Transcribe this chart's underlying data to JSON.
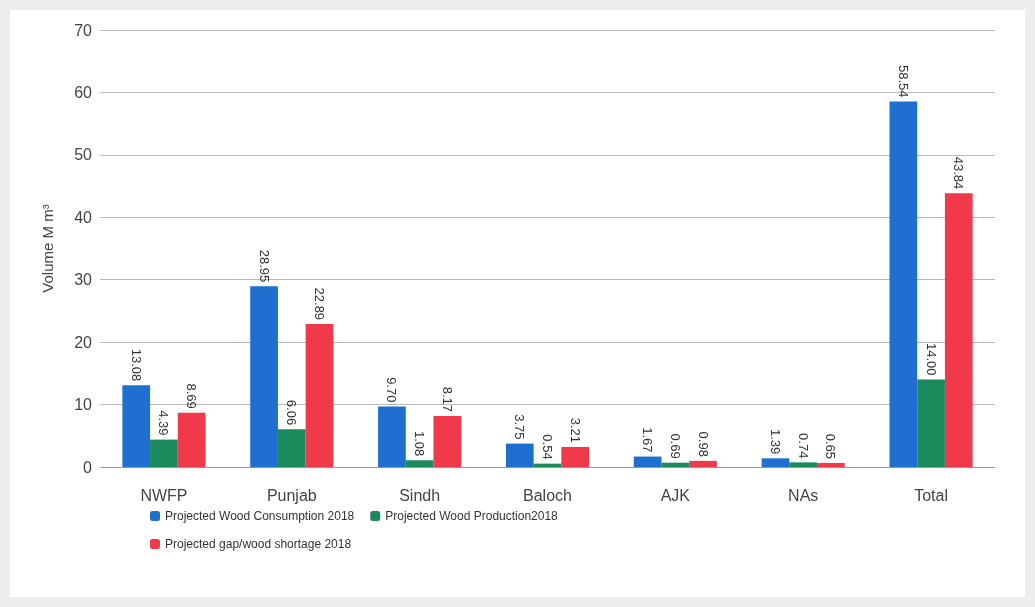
{
  "chart_data": {
    "type": "bar",
    "ylabel": "Volume M m³",
    "categories": [
      "NWFP",
      "Punjab",
      "Sindh",
      "Baloch",
      "AJK",
      "NAs",
      "Total"
    ],
    "series": [
      {
        "name": "Projected Wood Consumption 2018",
        "color": "#1f6fd0",
        "values": [
          13.08,
          28.95,
          9.7,
          3.75,
          1.67,
          1.39,
          58.54
        ],
        "value_labels": [
          "13.08",
          "28.95",
          "9.70",
          "3.75",
          "1.67",
          "1.39",
          "58.54"
        ]
      },
      {
        "name": "Projected Wood Production2018",
        "color": "#1a8a5c",
        "values": [
          4.39,
          6.06,
          1.08,
          0.54,
          0.69,
          0.74,
          14.0
        ],
        "value_labels": [
          "4.39",
          "6.06",
          "1.08",
          "0.54",
          "0.69",
          "0.74",
          "14.00"
        ]
      },
      {
        "name": "Projected gap/wood shortage 2018",
        "color": "#f03a4a",
        "values": [
          8.69,
          22.89,
          8.17,
          3.21,
          0.98,
          0.65,
          43.84
        ],
        "value_labels": [
          "8.69",
          "22.89",
          "8.17",
          "3.21",
          "0.98",
          "0.65",
          "43.84"
        ]
      }
    ],
    "ylim": [
      0,
      70
    ],
    "yticks": [
      0,
      10,
      20,
      30,
      40,
      50,
      60,
      70
    ],
    "grid": "y",
    "legend": "bottom"
  }
}
